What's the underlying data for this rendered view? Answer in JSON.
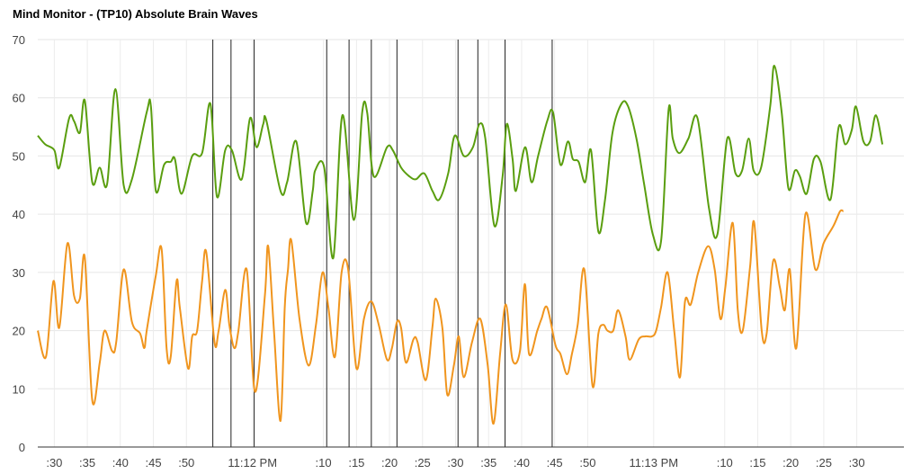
{
  "chart_data": {
    "type": "line",
    "title": "Mind Monitor - (TP10) Absolute Brain Waves",
    "ylim": [
      0,
      70
    ],
    "yticks": [
      0,
      10,
      20,
      30,
      40,
      50,
      60,
      70
    ],
    "xlim": [
      0,
      1
    ],
    "xticks": [
      {
        "label": ":30",
        "t": 0.0191
      },
      {
        "label": ":35",
        "t": 0.0572
      },
      {
        "label": ":40",
        "t": 0.0953
      },
      {
        "label": ":45",
        "t": 0.1335
      },
      {
        "label": ":50",
        "t": 0.1716
      },
      {
        "label": "11:12 PM",
        "t": 0.2479
      },
      {
        "label": ":10",
        "t": 0.3298
      },
      {
        "label": ":15",
        "t": 0.368
      },
      {
        "label": ":20",
        "t": 0.4061
      },
      {
        "label": ":25",
        "t": 0.4442
      },
      {
        "label": ":30",
        "t": 0.4823
      },
      {
        "label": ":35",
        "t": 0.5205
      },
      {
        "label": ":40",
        "t": 0.5586
      },
      {
        "label": ":45",
        "t": 0.5967
      },
      {
        "label": ":50",
        "t": 0.6349
      },
      {
        "label": "11:13 PM",
        "t": 0.7111
      },
      {
        "label": ":10",
        "t": 0.7931
      },
      {
        "label": ":15",
        "t": 0.8312
      },
      {
        "label": ":20",
        "t": 0.8693
      },
      {
        "label": ":25",
        "t": 0.9075
      },
      {
        "label": ":30",
        "t": 0.9456
      }
    ],
    "markers": [
      0.2021,
      0.2231,
      0.2498,
      0.3336,
      0.3594,
      0.3851,
      0.4147,
      0.4852,
      0.5081,
      0.5395,
      0.5939
    ],
    "grid": true,
    "series": [
      {
        "color": "#5a9e0f",
        "points": [
          [
            0.0,
            53.5
          ],
          [
            0.0086,
            52.0
          ],
          [
            0.0191,
            51.0
          ],
          [
            0.0248,
            48.0
          ],
          [
            0.0362,
            56.5
          ],
          [
            0.0419,
            56.0
          ],
          [
            0.0486,
            54.0
          ],
          [
            0.0543,
            59.5
          ],
          [
            0.0629,
            45.5
          ],
          [
            0.0715,
            48.0
          ],
          [
            0.0801,
            45.2
          ],
          [
            0.0896,
            61.5
          ],
          [
            0.0992,
            45.0
          ],
          [
            0.1087,
            46.0
          ],
          [
            0.1258,
            57.5
          ],
          [
            0.1306,
            58.5
          ],
          [
            0.1363,
            44.0
          ],
          [
            0.1459,
            48.5
          ],
          [
            0.1535,
            49.0
          ],
          [
            0.1583,
            49.5
          ],
          [
            0.1659,
            43.5
          ],
          [
            0.1783,
            50.0
          ],
          [
            0.1897,
            50.5
          ],
          [
            0.1993,
            59.0
          ],
          [
            0.2069,
            43.0
          ],
          [
            0.2164,
            51.0
          ],
          [
            0.2241,
            51.0
          ],
          [
            0.2355,
            46.0
          ],
          [
            0.2451,
            56.5
          ],
          [
            0.2526,
            51.5
          ],
          [
            0.2603,
            55.5
          ],
          [
            0.2641,
            56.0
          ],
          [
            0.2803,
            44.0
          ],
          [
            0.2879,
            45.5
          ],
          [
            0.2984,
            52.5
          ],
          [
            0.3098,
            38.5
          ],
          [
            0.3174,
            44.0
          ],
          [
            0.3203,
            47.5
          ],
          [
            0.3307,
            48.0
          ],
          [
            0.3412,
            32.5
          ],
          [
            0.3517,
            57.0
          ],
          [
            0.365,
            39.0
          ],
          [
            0.3746,
            57.5
          ],
          [
            0.3803,
            57.5
          ],
          [
            0.3879,
            46.5
          ],
          [
            0.4032,
            51.5
          ],
          [
            0.4099,
            51.0
          ],
          [
            0.4195,
            48.0
          ],
          [
            0.429,
            46.5
          ],
          [
            0.4366,
            46.0
          ],
          [
            0.4462,
            47.0
          ],
          [
            0.4557,
            44.0
          ],
          [
            0.4634,
            42.5
          ],
          [
            0.4738,
            47.0
          ],
          [
            0.4814,
            53.5
          ],
          [
            0.4919,
            50.0
          ],
          [
            0.5024,
            51.5
          ],
          [
            0.51,
            55.5
          ],
          [
            0.5167,
            53.0
          ],
          [
            0.5272,
            38.0
          ],
          [
            0.5367,
            46.5
          ],
          [
            0.5415,
            55.5
          ],
          [
            0.5482,
            49.5
          ],
          [
            0.552,
            44.0
          ],
          [
            0.5625,
            51.5
          ],
          [
            0.5701,
            45.5
          ],
          [
            0.5777,
            50.0
          ],
          [
            0.5882,
            56.0
          ],
          [
            0.5949,
            57.5
          ],
          [
            0.6034,
            48.5
          ],
          [
            0.612,
            52.5
          ],
          [
            0.6177,
            49.5
          ],
          [
            0.6244,
            49.0
          ],
          [
            0.632,
            45.5
          ],
          [
            0.6387,
            51.0
          ],
          [
            0.6473,
            37.0
          ],
          [
            0.6549,
            42.5
          ],
          [
            0.6635,
            54.0
          ],
          [
            0.674,
            59.0
          ],
          [
            0.6816,
            58.5
          ],
          [
            0.6912,
            53.0
          ],
          [
            0.6997,
            45.5
          ],
          [
            0.7102,
            36.5
          ],
          [
            0.7197,
            35.5
          ],
          [
            0.7283,
            58.0
          ],
          [
            0.7331,
            53.0
          ],
          [
            0.7407,
            50.5
          ],
          [
            0.7512,
            53.0
          ],
          [
            0.7617,
            56.5
          ],
          [
            0.775,
            41.0
          ],
          [
            0.7846,
            36.5
          ],
          [
            0.7961,
            53.0
          ],
          [
            0.8056,
            47.0
          ],
          [
            0.8132,
            47.5
          ],
          [
            0.8208,
            53.0
          ],
          [
            0.8265,
            47.5
          ],
          [
            0.8351,
            48.0
          ],
          [
            0.8456,
            58.5
          ],
          [
            0.8504,
            65.5
          ],
          [
            0.8589,
            57.5
          ],
          [
            0.8666,
            44.5
          ],
          [
            0.8742,
            47.5
          ],
          [
            0.8799,
            46.5
          ],
          [
            0.8876,
            43.5
          ],
          [
            0.8961,
            49.5
          ],
          [
            0.9037,
            49.0
          ],
          [
            0.9152,
            42.5
          ],
          [
            0.9247,
            55.0
          ],
          [
            0.9323,
            52.0
          ],
          [
            0.9399,
            54.5
          ],
          [
            0.9447,
            58.5
          ],
          [
            0.9533,
            52.5
          ],
          [
            0.9609,
            52.5
          ],
          [
            0.9676,
            57.0
          ],
          [
            0.9752,
            52.0
          ]
        ]
      },
      {
        "color": "#f0951e",
        "points": [
          [
            0.0,
            20.0
          ],
          [
            0.0095,
            15.5
          ],
          [
            0.0181,
            28.5
          ],
          [
            0.0248,
            20.5
          ],
          [
            0.0343,
            35.0
          ],
          [
            0.0419,
            26.0
          ],
          [
            0.0486,
            25.5
          ],
          [
            0.0543,
            32.5
          ],
          [
            0.0629,
            8.0
          ],
          [
            0.0715,
            14.5
          ],
          [
            0.0772,
            20.0
          ],
          [
            0.0858,
            16.5
          ],
          [
            0.0906,
            18.0
          ],
          [
            0.0992,
            30.5
          ],
          [
            0.1087,
            21.5
          ],
          [
            0.1182,
            19.5
          ],
          [
            0.123,
            17.0
          ],
          [
            0.1258,
            20.0
          ],
          [
            0.1363,
            29.5
          ],
          [
            0.143,
            34.0
          ],
          [
            0.1487,
            17.0
          ],
          [
            0.1535,
            15.5
          ],
          [
            0.1602,
            28.5
          ],
          [
            0.164,
            24.0
          ],
          [
            0.1735,
            13.5
          ],
          [
            0.1783,
            19.0
          ],
          [
            0.184,
            20.0
          ],
          [
            0.1897,
            28.5
          ],
          [
            0.1945,
            33.5
          ],
          [
            0.204,
            18.0
          ],
          [
            0.2088,
            20.0
          ],
          [
            0.2164,
            27.0
          ],
          [
            0.2212,
            21.0
          ],
          [
            0.2269,
            17.0
          ],
          [
            0.2317,
            20.0
          ],
          [
            0.2412,
            30.5
          ],
          [
            0.2508,
            9.5
          ],
          [
            0.2622,
            26.0
          ],
          [
            0.266,
            34.5
          ],
          [
            0.2727,
            20.0
          ],
          [
            0.2803,
            4.5
          ],
          [
            0.2851,
            24.0
          ],
          [
            0.2889,
            30.5
          ],
          [
            0.2927,
            35.5
          ],
          [
            0.3022,
            22.0
          ],
          [
            0.3127,
            14.0
          ],
          [
            0.3212,
            21.0
          ],
          [
            0.3288,
            30.0
          ],
          [
            0.3355,
            24.0
          ],
          [
            0.3431,
            15.5
          ],
          [
            0.3508,
            30.0
          ],
          [
            0.3584,
            30.5
          ],
          [
            0.3679,
            13.5
          ],
          [
            0.3765,
            22.0
          ],
          [
            0.3851,
            25.0
          ],
          [
            0.3937,
            21.0
          ],
          [
            0.4032,
            15.0
          ],
          [
            0.4089,
            17.0
          ],
          [
            0.4147,
            21.5
          ],
          [
            0.4194,
            20.5
          ],
          [
            0.4251,
            14.5
          ],
          [
            0.4337,
            18.5
          ],
          [
            0.4385,
            18.0
          ],
          [
            0.448,
            11.5
          ],
          [
            0.4556,
            20.5
          ],
          [
            0.4594,
            25.5
          ],
          [
            0.4671,
            20.5
          ],
          [
            0.4728,
            9.0
          ],
          [
            0.4804,
            14.0
          ],
          [
            0.4861,
            19.0
          ],
          [
            0.4918,
            12.0
          ],
          [
            0.5014,
            18.0
          ],
          [
            0.5109,
            22.0
          ],
          [
            0.5195,
            14.0
          ],
          [
            0.5262,
            4.0
          ],
          [
            0.5338,
            16.0
          ],
          [
            0.5405,
            24.5
          ],
          [
            0.5481,
            15.0
          ],
          [
            0.5567,
            16.5
          ],
          [
            0.5624,
            28.0
          ],
          [
            0.5672,
            16.0
          ],
          [
            0.5767,
            20.0
          ],
          [
            0.5815,
            22.0
          ],
          [
            0.5881,
            24.0
          ],
          [
            0.5977,
            17.5
          ],
          [
            0.6034,
            16.0
          ],
          [
            0.611,
            12.5
          ],
          [
            0.6167,
            16.0
          ],
          [
            0.6234,
            21.0
          ],
          [
            0.631,
            30.5
          ],
          [
            0.6405,
            10.5
          ],
          [
            0.6472,
            19.5
          ],
          [
            0.6529,
            21.0
          ],
          [
            0.6577,
            20.0
          ],
          [
            0.6644,
            20.0
          ],
          [
            0.6701,
            23.5
          ],
          [
            0.6786,
            19.0
          ],
          [
            0.6834,
            15.0
          ],
          [
            0.6939,
            18.5
          ],
          [
            0.7015,
            19.0
          ],
          [
            0.7091,
            19.0
          ],
          [
            0.7139,
            20.0
          ],
          [
            0.7196,
            24.0
          ],
          [
            0.7272,
            30.0
          ],
          [
            0.7348,
            20.0
          ],
          [
            0.7415,
            12.0
          ],
          [
            0.7472,
            25.0
          ],
          [
            0.7539,
            24.5
          ],
          [
            0.7625,
            30.0
          ],
          [
            0.7739,
            34.5
          ],
          [
            0.7815,
            30.5
          ],
          [
            0.7882,
            22.0
          ],
          [
            0.7939,
            27.5
          ],
          [
            0.8024,
            38.5
          ],
          [
            0.8082,
            23.5
          ],
          [
            0.8139,
            20.0
          ],
          [
            0.8224,
            31.0
          ],
          [
            0.8272,
            38.5
          ],
          [
            0.8358,
            20.0
          ],
          [
            0.8415,
            19.5
          ],
          [
            0.8491,
            32.0
          ],
          [
            0.8567,
            27.5
          ],
          [
            0.8625,
            23.5
          ],
          [
            0.8682,
            30.5
          ],
          [
            0.8758,
            17.0
          ],
          [
            0.8863,
            40.0
          ],
          [
            0.8977,
            30.5
          ],
          [
            0.9073,
            35.0
          ],
          [
            0.9187,
            38.0
          ],
          [
            0.9263,
            40.5
          ],
          [
            0.9301,
            40.5
          ]
        ]
      }
    ]
  }
}
